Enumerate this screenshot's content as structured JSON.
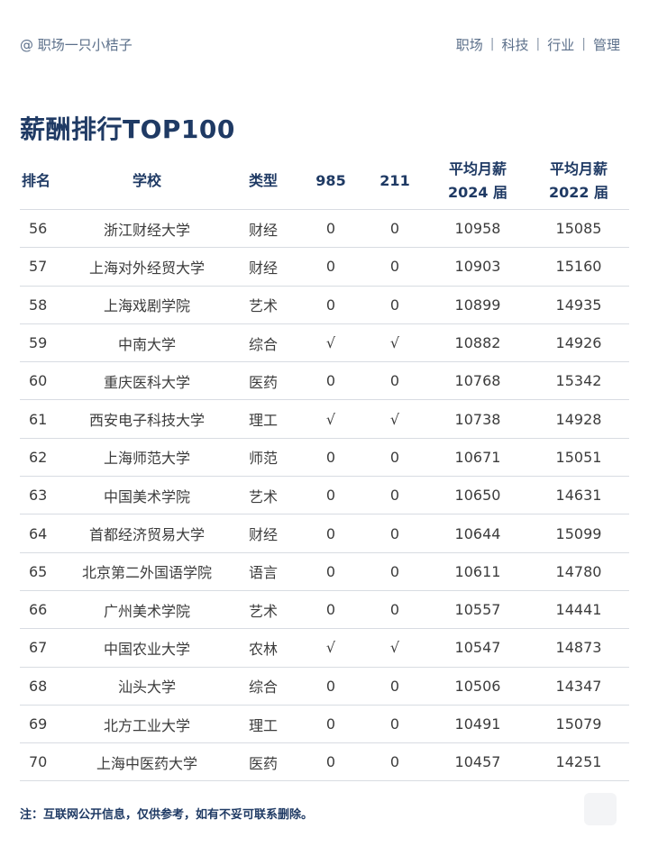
{
  "header": {
    "account": "@ 职场一只小桔子",
    "nav": [
      "职场",
      "科技",
      "行业",
      "管理"
    ],
    "separator": "|"
  },
  "title": "薪酬排行TOP100",
  "table": {
    "columns": {
      "rank": "排名",
      "school": "学校",
      "type": "类型",
      "c985": "985",
      "c211": "211",
      "salary2024_line1": "平均月薪",
      "salary2024_line2": "2024 届",
      "salary2022_line1": "平均月薪",
      "salary2022_line2": "2022 届"
    },
    "rows": [
      {
        "rank": "56",
        "school": "浙江财经大学",
        "type": "财经",
        "c985": "0",
        "c211": "0",
        "salary2024": "10958",
        "salary2022": "15085"
      },
      {
        "rank": "57",
        "school": "上海对外经贸大学",
        "type": "财经",
        "c985": "0",
        "c211": "0",
        "salary2024": "10903",
        "salary2022": "15160"
      },
      {
        "rank": "58",
        "school": "上海戏剧学院",
        "type": "艺术",
        "c985": "0",
        "c211": "0",
        "salary2024": "10899",
        "salary2022": "14935"
      },
      {
        "rank": "59",
        "school": "中南大学",
        "type": "综合",
        "c985": "√",
        "c211": "√",
        "salary2024": "10882",
        "salary2022": "14926"
      },
      {
        "rank": "60",
        "school": "重庆医科大学",
        "type": "医药",
        "c985": "0",
        "c211": "0",
        "salary2024": "10768",
        "salary2022": "15342"
      },
      {
        "rank": "61",
        "school": "西安电子科技大学",
        "type": "理工",
        "c985": "√",
        "c211": "√",
        "salary2024": "10738",
        "salary2022": "14928"
      },
      {
        "rank": "62",
        "school": "上海师范大学",
        "type": "师范",
        "c985": "0",
        "c211": "0",
        "salary2024": "10671",
        "salary2022": "15051"
      },
      {
        "rank": "63",
        "school": "中国美术学院",
        "type": "艺术",
        "c985": "0",
        "c211": "0",
        "salary2024": "10650",
        "salary2022": "14631"
      },
      {
        "rank": "64",
        "school": "首都经济贸易大学",
        "type": "财经",
        "c985": "0",
        "c211": "0",
        "salary2024": "10644",
        "salary2022": "15099"
      },
      {
        "rank": "65",
        "school": "北京第二外国语学院",
        "type": "语言",
        "c985": "0",
        "c211": "0",
        "salary2024": "10611",
        "salary2022": "14780"
      },
      {
        "rank": "66",
        "school": "广州美术学院",
        "type": "艺术",
        "c985": "0",
        "c211": "0",
        "salary2024": "10557",
        "salary2022": "14441"
      },
      {
        "rank": "67",
        "school": "中国农业大学",
        "type": "农林",
        "c985": "√",
        "c211": "√",
        "salary2024": "10547",
        "salary2022": "14873"
      },
      {
        "rank": "68",
        "school": "汕头大学",
        "type": "综合",
        "c985": "0",
        "c211": "0",
        "salary2024": "10506",
        "salary2022": "14347"
      },
      {
        "rank": "69",
        "school": "北方工业大学",
        "type": "理工",
        "c985": "0",
        "c211": "0",
        "salary2024": "10491",
        "salary2022": "15079"
      },
      {
        "rank": "70",
        "school": "上海中医药大学",
        "type": "医药",
        "c985": "0",
        "c211": "0",
        "salary2024": "10457",
        "salary2022": "14251"
      }
    ]
  },
  "footnote": "注：互联网公开信息，仅供参考，如有不妥可联系删除。"
}
